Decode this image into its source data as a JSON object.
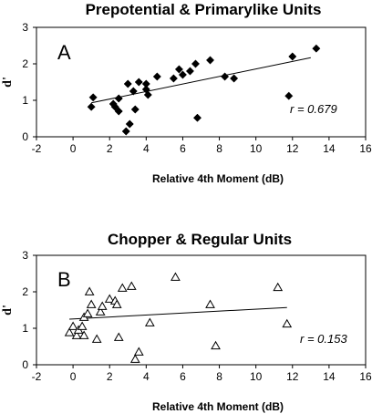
{
  "chart_data": [
    {
      "type": "scatter",
      "title": "Prepotential & Primarylike Units",
      "panel_label": "A",
      "xlabel": "Relative 4th Moment (dB)",
      "ylabel": "d'",
      "xlim": [
        -2,
        16
      ],
      "ylim": [
        0,
        3
      ],
      "xticks": [
        -2,
        0,
        2,
        4,
        6,
        8,
        10,
        12,
        14,
        16
      ],
      "yticks": [
        0,
        1,
        2,
        3
      ],
      "marker": "filled-diamond",
      "annotation": "r = 0.679",
      "fit_line": {
        "x": [
          1.0,
          13.0
        ],
        "y": [
          0.93,
          2.17
        ]
      },
      "points": [
        {
          "x": 1.0,
          "y": 0.82
        },
        {
          "x": 1.1,
          "y": 1.08
        },
        {
          "x": 2.2,
          "y": 0.9
        },
        {
          "x": 2.3,
          "y": 0.82
        },
        {
          "x": 2.5,
          "y": 1.05
        },
        {
          "x": 2.5,
          "y": 0.7
        },
        {
          "x": 2.9,
          "y": 0.15
        },
        {
          "x": 3.0,
          "y": 1.45
        },
        {
          "x": 3.1,
          "y": 0.35
        },
        {
          "x": 3.3,
          "y": 1.25
        },
        {
          "x": 3.4,
          "y": 0.75
        },
        {
          "x": 3.6,
          "y": 1.5
        },
        {
          "x": 4.0,
          "y": 1.45
        },
        {
          "x": 4.0,
          "y": 1.3
        },
        {
          "x": 4.1,
          "y": 1.15
        },
        {
          "x": 4.6,
          "y": 1.65
        },
        {
          "x": 5.5,
          "y": 1.6
        },
        {
          "x": 5.8,
          "y": 1.85
        },
        {
          "x": 6.0,
          "y": 1.7
        },
        {
          "x": 6.4,
          "y": 1.8
        },
        {
          "x": 6.7,
          "y": 2.0
        },
        {
          "x": 6.8,
          "y": 0.52
        },
        {
          "x": 7.5,
          "y": 2.1
        },
        {
          "x": 8.3,
          "y": 1.65
        },
        {
          "x": 8.8,
          "y": 1.6
        },
        {
          "x": 11.8,
          "y": 1.12
        },
        {
          "x": 12.0,
          "y": 2.2
        },
        {
          "x": 13.3,
          "y": 2.42
        }
      ]
    },
    {
      "type": "scatter",
      "title": "Chopper & Regular Units",
      "panel_label": "B",
      "xlabel": "Relative 4th Moment (dB)",
      "ylabel": "d'",
      "xlim": [
        -2,
        16
      ],
      "ylim": [
        0,
        3
      ],
      "xticks": [
        -2,
        0,
        2,
        4,
        6,
        8,
        10,
        12,
        14,
        16
      ],
      "yticks": [
        0,
        1,
        2,
        3
      ],
      "marker": "open-triangle",
      "annotation": "r = 0.153",
      "fit_line": {
        "x": [
          -0.2,
          11.7
        ],
        "y": [
          1.25,
          1.57
        ]
      },
      "points": [
        {
          "x": -0.2,
          "y": 0.88
        },
        {
          "x": 0.0,
          "y": 1.05
        },
        {
          "x": 0.2,
          "y": 0.8
        },
        {
          "x": 0.3,
          "y": 0.95
        },
        {
          "x": 0.5,
          "y": 1.05
        },
        {
          "x": 0.6,
          "y": 1.3
        },
        {
          "x": 0.6,
          "y": 0.8
        },
        {
          "x": 0.8,
          "y": 1.4
        },
        {
          "x": 0.9,
          "y": 2.0
        },
        {
          "x": 1.0,
          "y": 1.65
        },
        {
          "x": 1.3,
          "y": 0.7
        },
        {
          "x": 1.5,
          "y": 1.45
        },
        {
          "x": 1.6,
          "y": 1.6
        },
        {
          "x": 2.0,
          "y": 1.8
        },
        {
          "x": 2.3,
          "y": 1.75
        },
        {
          "x": 2.4,
          "y": 1.65
        },
        {
          "x": 2.5,
          "y": 0.75
        },
        {
          "x": 2.7,
          "y": 2.1
        },
        {
          "x": 3.2,
          "y": 2.15
        },
        {
          "x": 3.4,
          "y": 0.15
        },
        {
          "x": 3.6,
          "y": 0.35
        },
        {
          "x": 4.2,
          "y": 1.15
        },
        {
          "x": 5.6,
          "y": 2.4
        },
        {
          "x": 7.5,
          "y": 1.65
        },
        {
          "x": 7.8,
          "y": 0.52
        },
        {
          "x": 11.2,
          "y": 2.12
        },
        {
          "x": 11.7,
          "y": 1.12
        }
      ]
    }
  ]
}
